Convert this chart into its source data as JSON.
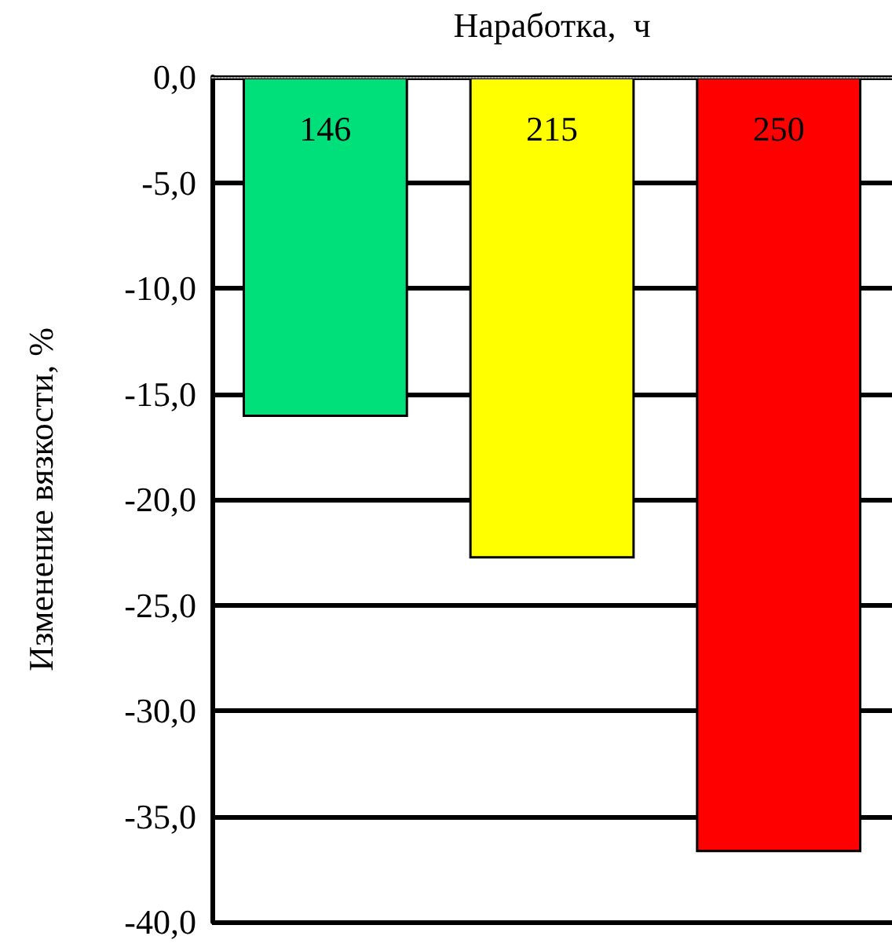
{
  "chart_data": {
    "type": "bar",
    "xlabel": "Наработка,  ч",
    "ylabel": "Изменение вязкости, %",
    "categories": [
      "146",
      "215",
      "250"
    ],
    "values": [
      -16.1,
      -22.8,
      -36.7
    ],
    "colors": [
      "#00e07a",
      "#ffff00",
      "#ff0000"
    ],
    "ylim": [
      -40,
      0
    ],
    "yticks": [
      {
        "value": 0,
        "label": "0,0"
      },
      {
        "value": -5,
        "label": "-5,0"
      },
      {
        "value": -10,
        "label": "-10,0"
      },
      {
        "value": -15,
        "label": "-15,0"
      },
      {
        "value": -20,
        "label": "-20,0"
      },
      {
        "value": -25,
        "label": "-25,0"
      },
      {
        "value": -30,
        "label": "-30,0"
      },
      {
        "value": -35,
        "label": "-35,0"
      },
      {
        "value": -40,
        "label": "-40,0"
      }
    ],
    "grid": "y"
  }
}
